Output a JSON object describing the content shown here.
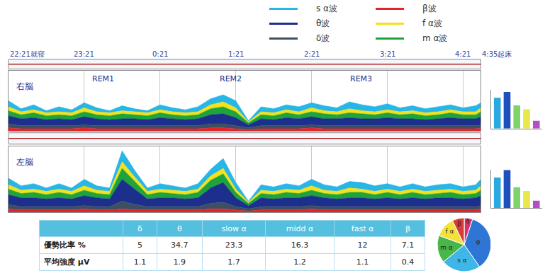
{
  "chart_data": [
    {
      "type": "area",
      "stacked": true,
      "grid": true,
      "tick_labels": "x",
      "x": [
        0,
        10,
        20,
        30,
        40,
        50,
        60,
        70,
        80,
        90,
        100,
        110,
        120,
        130,
        140,
        150,
        160,
        170,
        180,
        190,
        200,
        210,
        220,
        230,
        240,
        250,
        260,
        270,
        280,
        290,
        300,
        310,
        320,
        330,
        340,
        350,
        360,
        370,
        374
      ],
      "xlim": [
        0,
        374
      ],
      "xticks": [
        {
          "value": 0,
          "label": "22:21就寝"
        },
        {
          "value": 60,
          "label": "23:21"
        },
        {
          "value": 120,
          "label": "0:21"
        },
        {
          "value": 180,
          "label": "1:21"
        },
        {
          "value": 240,
          "label": "2:21"
        },
        {
          "value": 300,
          "label": "3:21"
        },
        {
          "value": 360,
          "label": "4:21"
        },
        {
          "value": 374,
          "label": "4:35起床"
        }
      ],
      "ylim": [
        0,
        6
      ],
      "panels": [
        {
          "name": "右脳",
          "annotations": [
            {
              "text": "REM1",
              "x": 75
            },
            {
              "text": "REM2",
              "x": 176
            },
            {
              "text": "REM3",
              "x": 279
            }
          ],
          "series": [
            {
              "name": "β波",
              "color": "#e0262a",
              "values": [
                0.3,
                0.2,
                0.2,
                0.2,
                0.2,
                0.2,
                0.3,
                0.2,
                0.2,
                0.2,
                0.2,
                0.2,
                0.2,
                0.2,
                0.2,
                0.2,
                0.3,
                0.3,
                0.2,
                0.1,
                0.2,
                0.2,
                0.2,
                0.2,
                0.3,
                0.2,
                0.2,
                0.2,
                0.2,
                0.2,
                0.2,
                0.2,
                0.2,
                0.2,
                0.2,
                0.2,
                0.2,
                0.2,
                0.3
              ]
            },
            {
              "name": "δ波",
              "color": "#3d4f63",
              "values": [
                0.4,
                0.3,
                0.3,
                0.3,
                0.3,
                0.3,
                0.3,
                0.3,
                0.3,
                0.3,
                0.3,
                0.3,
                0.3,
                0.3,
                0.3,
                0.3,
                0.4,
                0.4,
                0.3,
                0.2,
                0.3,
                0.3,
                0.3,
                0.3,
                0.3,
                0.3,
                0.3,
                0.3,
                0.3,
                0.3,
                0.3,
                0.3,
                0.3,
                0.3,
                0.3,
                0.3,
                0.3,
                0.3,
                0.3
              ]
            },
            {
              "name": "θ波",
              "color": "#1c2f8c",
              "values": [
                0.8,
                0.7,
                0.8,
                0.6,
                0.7,
                0.6,
                0.8,
                0.7,
                0.6,
                0.7,
                0.7,
                0.6,
                0.8,
                0.7,
                0.6,
                0.7,
                0.9,
                1.0,
                0.8,
                0.3,
                0.7,
                0.6,
                0.8,
                0.7,
                0.8,
                0.7,
                0.7,
                0.8,
                0.7,
                0.7,
                0.8,
                0.7,
                0.7,
                0.6,
                0.7,
                0.8,
                0.7,
                0.7,
                0.8
              ]
            },
            {
              "name": "m α波",
              "color": "#1fa43c",
              "values": [
                0.5,
                0.4,
                0.5,
                0.4,
                0.4,
                0.4,
                0.5,
                0.4,
                0.4,
                0.5,
                0.4,
                0.4,
                0.5,
                0.4,
                0.4,
                0.4,
                0.6,
                0.7,
                0.6,
                0.2,
                0.4,
                0.4,
                0.5,
                0.4,
                0.5,
                0.5,
                0.4,
                0.5,
                0.5,
                0.4,
                0.5,
                0.4,
                0.5,
                0.4,
                0.4,
                0.5,
                0.4,
                0.4,
                0.5
              ]
            },
            {
              "name": "f α波",
              "color": "#f3e21b",
              "values": [
                0.4,
                0.3,
                0.3,
                0.3,
                0.3,
                0.3,
                0.4,
                0.3,
                0.3,
                0.3,
                0.3,
                0.3,
                0.3,
                0.3,
                0.3,
                0.3,
                0.4,
                0.5,
                0.4,
                0.1,
                0.3,
                0.3,
                0.3,
                0.3,
                0.4,
                0.3,
                0.3,
                0.4,
                0.3,
                0.3,
                0.3,
                0.3,
                0.3,
                0.3,
                0.3,
                0.3,
                0.3,
                0.3,
                0.4
              ]
            },
            {
              "name": "s α波",
              "color": "#27b6e6",
              "values": [
                0.6,
                0.3,
                0.5,
                0.2,
                0.5,
                0.3,
                0.5,
                0.4,
                0.2,
                0.5,
                0.3,
                0.2,
                0.5,
                0.4,
                0.3,
                0.5,
                0.6,
                0.7,
                0.7,
                0.1,
                0.5,
                0.4,
                0.5,
                0.5,
                0.5,
                0.5,
                0.4,
                0.7,
                0.6,
                0.5,
                0.6,
                0.4,
                0.5,
                0.4,
                0.5,
                0.5,
                0.4,
                0.6,
                0.5
              ]
            }
          ]
        },
        {
          "name": "左脳",
          "annotations": [],
          "series": [
            {
              "name": "β波",
              "color": "#e0262a",
              "values": [
                0.3,
                0.2,
                0.2,
                0.2,
                0.2,
                0.2,
                0.3,
                0.2,
                0.2,
                0.3,
                0.2,
                0.2,
                0.2,
                0.2,
                0.2,
                0.2,
                0.3,
                0.3,
                0.2,
                0.1,
                0.2,
                0.2,
                0.2,
                0.2,
                0.3,
                0.2,
                0.2,
                0.2,
                0.2,
                0.2,
                0.2,
                0.2,
                0.2,
                0.2,
                0.2,
                0.2,
                0.2,
                0.2,
                0.3
              ]
            },
            {
              "name": "δ波",
              "color": "#3d4f63",
              "values": [
                0.4,
                0.3,
                0.3,
                0.3,
                0.3,
                0.3,
                0.3,
                0.3,
                0.3,
                0.7,
                0.5,
                0.3,
                0.3,
                0.3,
                0.3,
                0.3,
                0.5,
                0.6,
                0.3,
                0.2,
                0.3,
                0.3,
                0.3,
                0.3,
                0.3,
                0.3,
                0.3,
                0.3,
                0.3,
                0.3,
                0.3,
                0.3,
                0.3,
                0.3,
                0.3,
                0.3,
                0.3,
                0.3,
                0.3
              ]
            },
            {
              "name": "θ波",
              "color": "#1c2f8c",
              "values": [
                0.9,
                0.8,
                0.8,
                0.7,
                0.8,
                0.7,
                0.9,
                0.8,
                0.7,
                2.0,
                1.4,
                0.7,
                0.8,
                0.8,
                0.7,
                0.8,
                1.4,
                1.8,
                0.8,
                0.3,
                0.8,
                0.7,
                0.8,
                0.8,
                0.9,
                0.8,
                0.7,
                0.8,
                0.8,
                0.7,
                0.8,
                0.7,
                0.8,
                0.7,
                0.8,
                0.8,
                0.7,
                0.8,
                0.9
              ]
            },
            {
              "name": "m α波",
              "color": "#1fa43c",
              "values": [
                0.5,
                0.4,
                0.5,
                0.4,
                0.5,
                0.4,
                0.5,
                0.4,
                0.4,
                1.0,
                0.7,
                0.4,
                0.5,
                0.4,
                0.4,
                0.5,
                0.7,
                0.8,
                0.5,
                0.2,
                0.4,
                0.4,
                0.5,
                0.4,
                0.5,
                0.4,
                0.4,
                0.5,
                0.5,
                0.4,
                0.5,
                0.4,
                0.5,
                0.4,
                0.4,
                0.5,
                0.4,
                0.4,
                0.5
              ]
            },
            {
              "name": "f α波",
              "color": "#f3e21b",
              "values": [
                0.4,
                0.3,
                0.3,
                0.3,
                0.3,
                0.3,
                0.4,
                0.3,
                0.3,
                0.6,
                0.4,
                0.3,
                0.3,
                0.3,
                0.3,
                0.3,
                0.4,
                0.5,
                0.3,
                0.1,
                0.3,
                0.3,
                0.3,
                0.3,
                0.4,
                0.3,
                0.3,
                0.4,
                0.3,
                0.3,
                0.3,
                0.3,
                0.3,
                0.3,
                0.3,
                0.3,
                0.3,
                0.3,
                0.4
              ]
            },
            {
              "name": "s α波",
              "color": "#27b6e6",
              "values": [
                0.6,
                0.4,
                0.5,
                0.3,
                0.5,
                0.3,
                0.6,
                0.4,
                0.3,
                1.0,
                0.6,
                0.3,
                0.5,
                0.4,
                0.3,
                0.5,
                0.6,
                0.9,
                0.6,
                0.1,
                0.5,
                0.4,
                0.5,
                0.4,
                0.6,
                0.5,
                0.4,
                0.6,
                0.6,
                0.5,
                0.5,
                0.4,
                0.5,
                0.4,
                0.5,
                0.5,
                0.4,
                0.5,
                0.6
              ]
            }
          ]
        }
      ]
    },
    {
      "type": "bar",
      "tick_labels": false,
      "ylim": [
        0,
        2
      ],
      "categories": [
        null,
        null,
        null,
        null,
        null
      ],
      "panels": [
        {
          "values": [
            1.6,
            1.9,
            1.2,
            1.0,
            0.4
          ],
          "colors": [
            "#2aa9e0",
            "#1f4fbf",
            "#7fd36b",
            "#e8e84a",
            "#b04fc8"
          ]
        },
        {
          "values": [
            1.6,
            2.0,
            1.1,
            0.9,
            0.4
          ],
          "colors": [
            "#2aa9e0",
            "#1f4fbf",
            "#7fd36b",
            "#e8e84a",
            "#b04fc8"
          ]
        }
      ]
    },
    {
      "type": "pie",
      "categories": [
        "δ",
        "θ",
        "s α",
        "m α",
        "f α",
        "β"
      ],
      "values": [
        5,
        34.7,
        23.3,
        16.3,
        12,
        7.1
      ],
      "colors": [
        "#d6336c",
        "#2e75d6",
        "#3fb6e8",
        "#49b649",
        "#f2e23a",
        "#d83a3a"
      ]
    }
  ],
  "table": {
    "header": [
      null,
      "δ",
      "θ",
      "slow α",
      "midd α",
      "fast α",
      "β"
    ],
    "rows": [
      [
        "優勢比率 %",
        5,
        34.7,
        23.3,
        16.3,
        12,
        7.1
      ],
      [
        "平均強度 μV",
        1.1,
        1.9,
        1.7,
        1.2,
        1.1,
        0.4
      ]
    ]
  }
}
